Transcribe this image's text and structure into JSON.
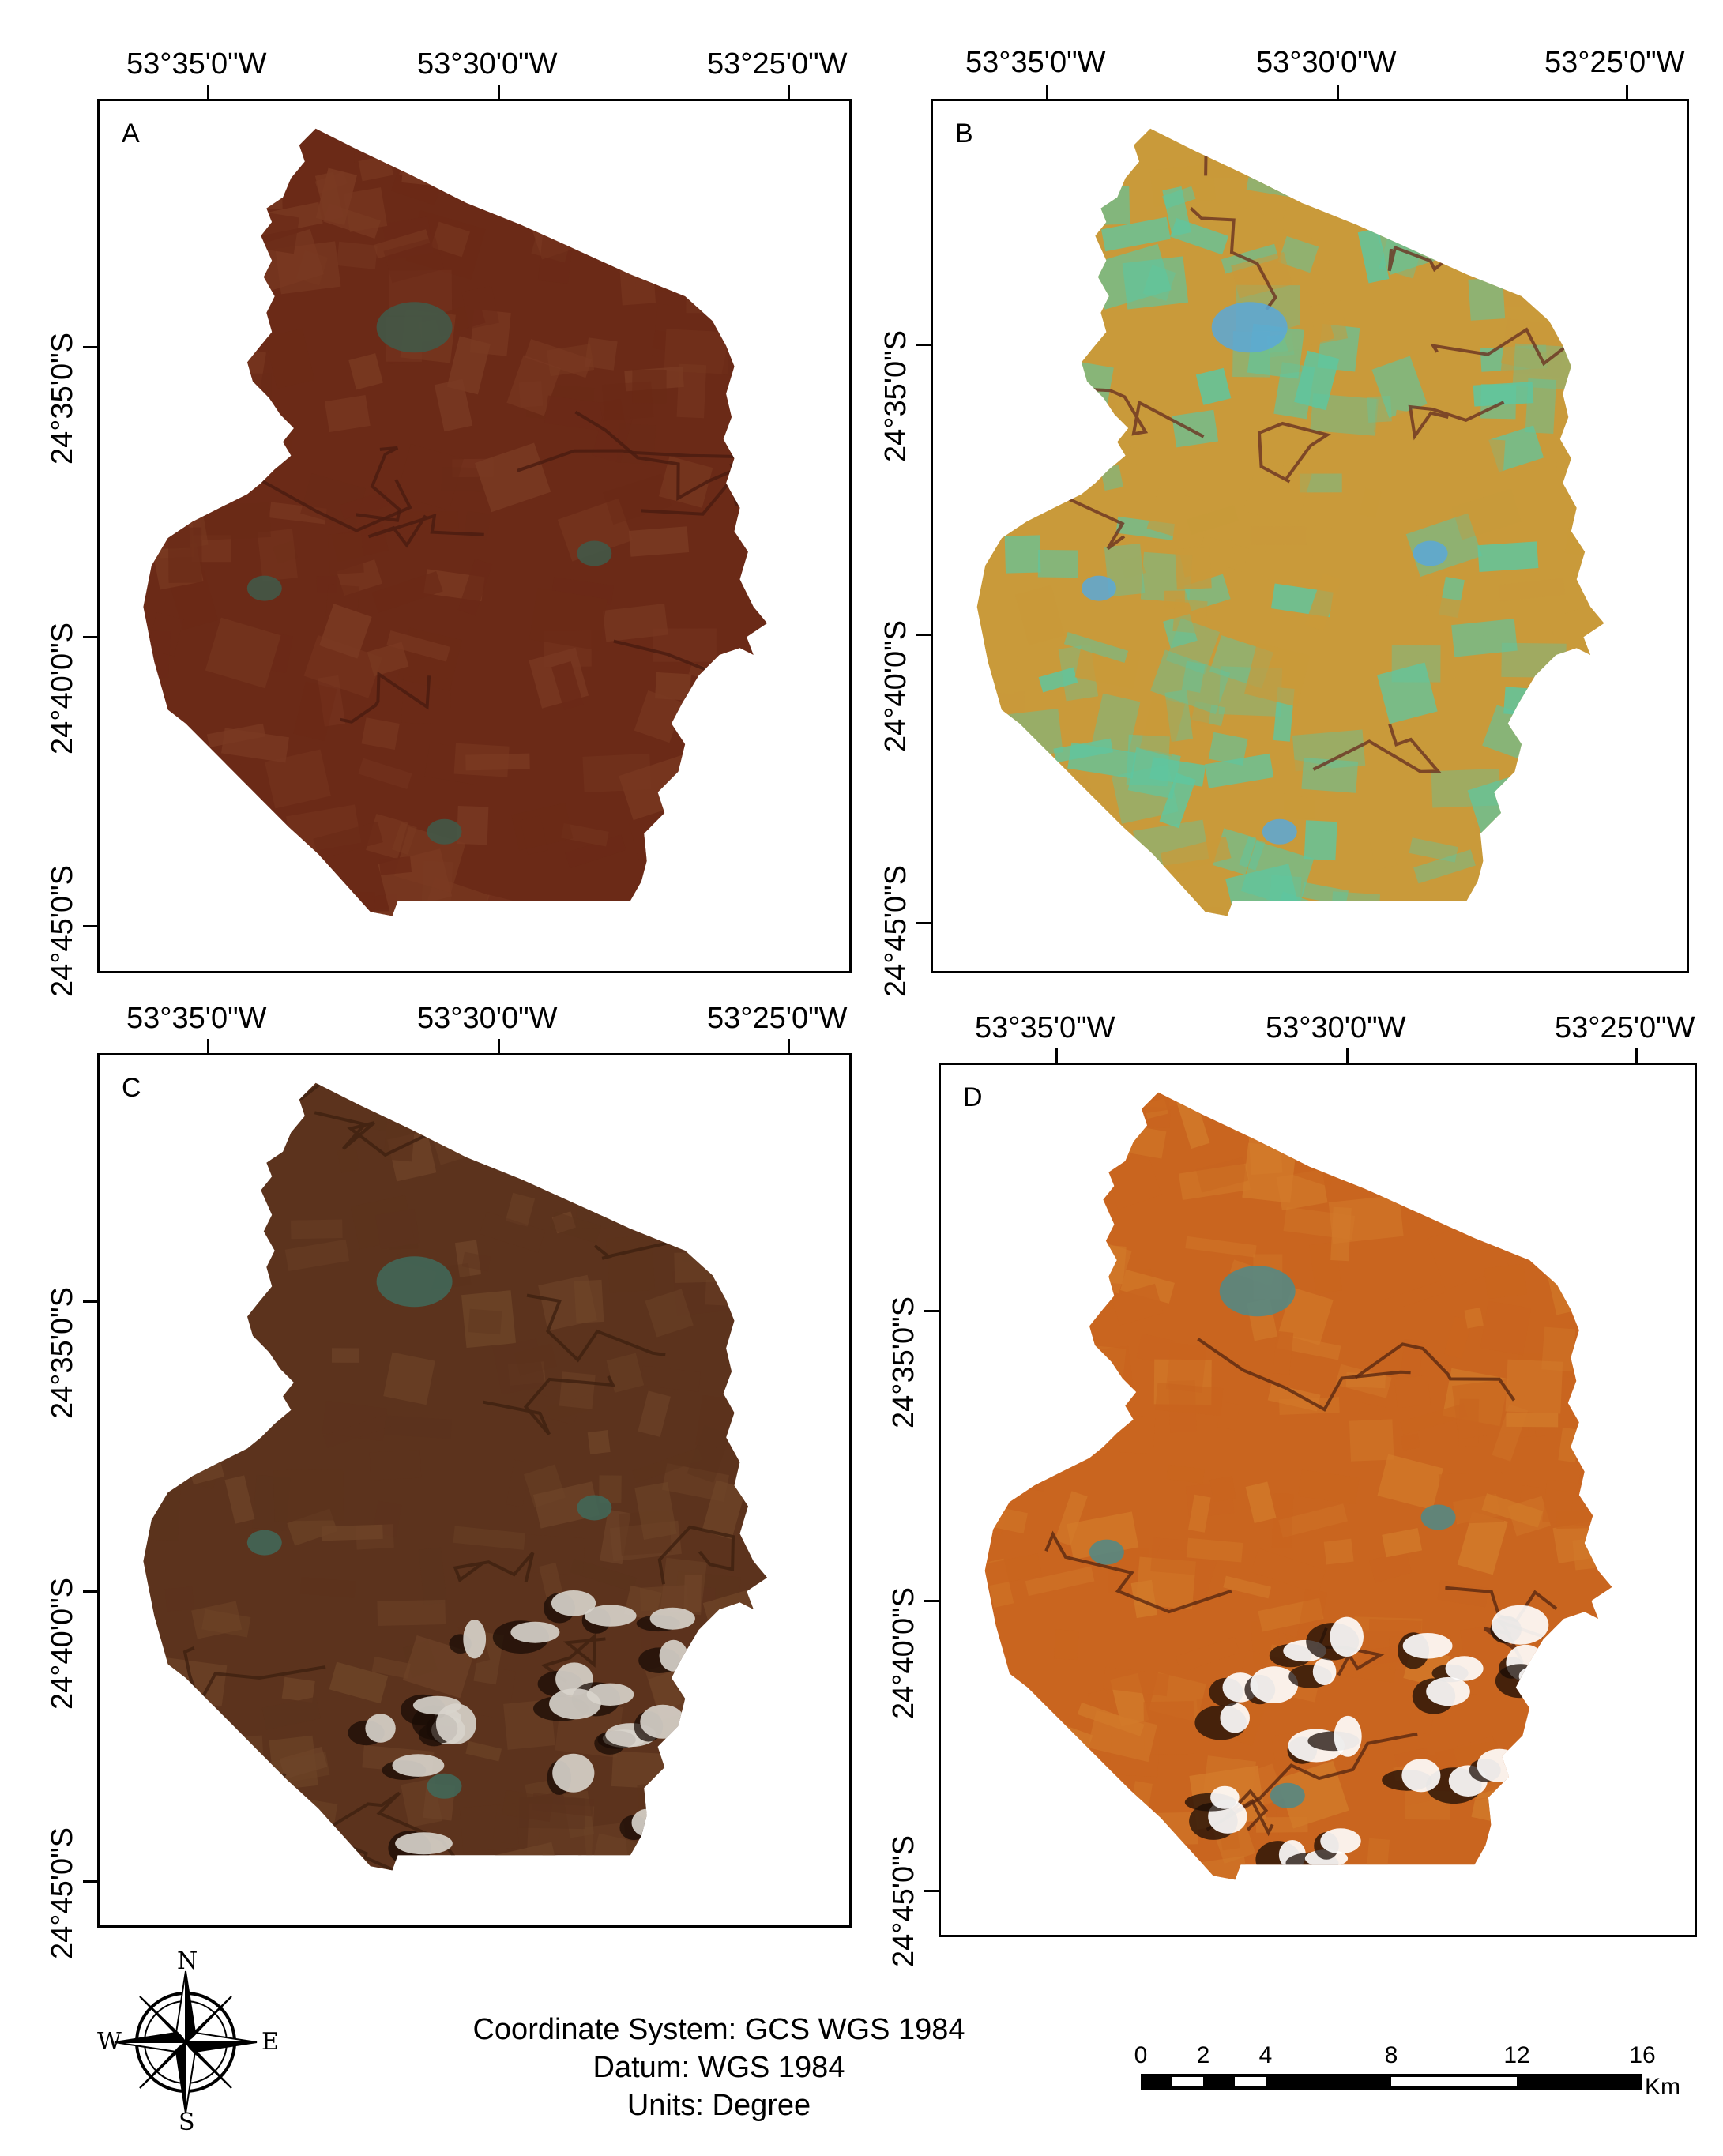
{
  "panels": [
    {
      "id": "A",
      "letter": "A",
      "palette": "dark-red"
    },
    {
      "id": "B",
      "letter": "B",
      "palette": "false-color-green-yellow"
    },
    {
      "id": "C",
      "letter": "C",
      "palette": "dark-brown-cloudy"
    },
    {
      "id": "D",
      "letter": "D",
      "palette": "orange-cloudy"
    }
  ],
  "longitude_labels": [
    "53°35'0\"W",
    "53°30'0\"W",
    "53°25'0\"W"
  ],
  "latitude_labels": [
    "24°35'0\"S",
    "24°40'0\"S",
    "24°45'0\"S"
  ],
  "compass": {
    "n": "N",
    "s": "S",
    "e": "E",
    "w": "W"
  },
  "footer": {
    "coordinate_system": "Coordinate System: GCS WGS 1984",
    "datum": "Datum: WGS 1984",
    "units": "Units: Degree"
  },
  "scalebar": {
    "ticks": [
      "0",
      "2",
      "4",
      "8",
      "12",
      "16"
    ],
    "unit": "Km"
  },
  "colors": {
    "A": {
      "fill": "#6b2a17",
      "field": "#7a3a22",
      "dark": "#4a1c10",
      "town": "#3f5a4a"
    },
    "B": {
      "fill": "#c99a3a",
      "field": "#5ec6a0",
      "dark": "#6a3222",
      "town": "#5aa8d8"
    },
    "C": {
      "fill": "#5c331d",
      "field": "#6e4428",
      "dark": "#3e2010",
      "town": "#3f6a5a"
    },
    "D": {
      "fill": "#c9651f",
      "field": "#d27a2a",
      "dark": "#5a2810",
      "town": "#4f8a88"
    }
  }
}
